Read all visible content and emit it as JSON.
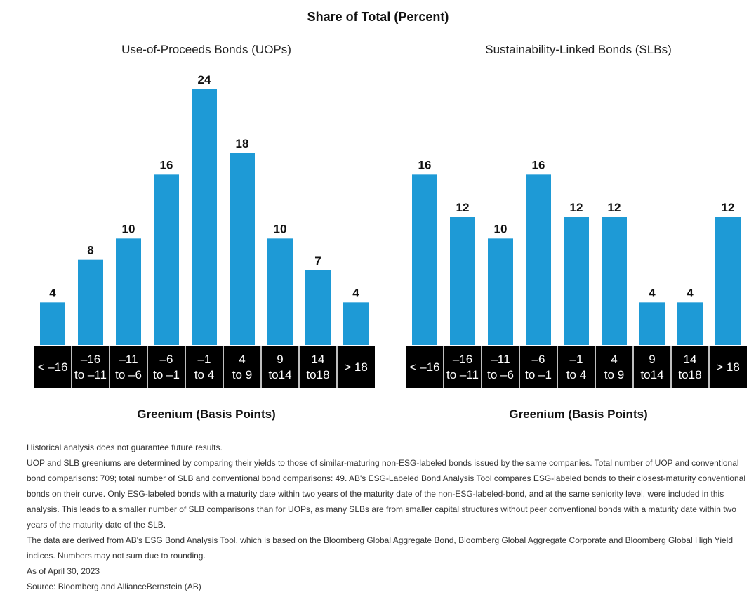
{
  "title": "Share of Total (Percent)",
  "chart_data": [
    {
      "type": "bar",
      "title": "Use-of-Proceeds Bonds (UOPs)",
      "xlabel": "Greenium (Basis Points)",
      "ylabel": "",
      "categories": [
        [
          "< –16"
        ],
        [
          "–16",
          "to –11"
        ],
        [
          "–11",
          "to –6"
        ],
        [
          "–6",
          "to –1"
        ],
        [
          "–1",
          "to 4"
        ],
        [
          "4",
          "to 9"
        ],
        [
          "9",
          "to14"
        ],
        [
          "14",
          "to18"
        ],
        [
          "> 18"
        ]
      ],
      "values": [
        4,
        8,
        10,
        16,
        24,
        18,
        10,
        7,
        4
      ],
      "ylim": [
        0,
        24
      ],
      "grid": false,
      "color": "#1e9ad6"
    },
    {
      "type": "bar",
      "title": "Sustainability-Linked Bonds (SLBs)",
      "xlabel": "Greenium (Basis Points)",
      "ylabel": "",
      "categories": [
        [
          "< –16"
        ],
        [
          "–16",
          "to –11"
        ],
        [
          "–11",
          "to –6"
        ],
        [
          "–6",
          "to –1"
        ],
        [
          "–1",
          "to 4"
        ],
        [
          "4",
          "to 9"
        ],
        [
          "9",
          "to14"
        ],
        [
          "14",
          "to18"
        ],
        [
          "> 18"
        ]
      ],
      "values": [
        16,
        12,
        10,
        16,
        12,
        12,
        4,
        4,
        12
      ],
      "ylim": [
        0,
        24
      ],
      "grid": false,
      "color": "#1e9ad6"
    }
  ],
  "notes": {
    "disclaimer": "Historical analysis does not guarantee future results.",
    "methodology": "UOP and SLB greeniums are determined by comparing their yields to those of similar-maturing non-ESG-labeled bonds issued by the same companies. Total number of UOP and conventional bond comparisons: 709; total number of SLB and conventional bond comparisons: 49. AB's ESG-Labeled Bond Analysis Tool compares ESG-labeled bonds to their closest-maturity conventional bonds on their curve. Only ESG-labeled bonds with a maturity date within two years of the maturity date of the non-ESG-labeled-bond, and at the same seniority level, were included in this analysis. This leads to a smaller number of SLB comparisons than for UOPs, as many SLBs are from smaller capital structures without peer conventional bonds with a maturity date within two years of the maturity date of the SLB.",
    "data_source_detail": "The data are derived from AB's ESG Bond Analysis Tool, which is based on the Bloomberg Global Aggregate Bond, Bloomberg Global Aggregate Corporate and Bloomberg Global High Yield indices. Numbers may not sum due to rounding.",
    "as_of": "As of April 30, 2023",
    "source": "Source: Bloomberg and AllianceBernstein (AB)"
  }
}
